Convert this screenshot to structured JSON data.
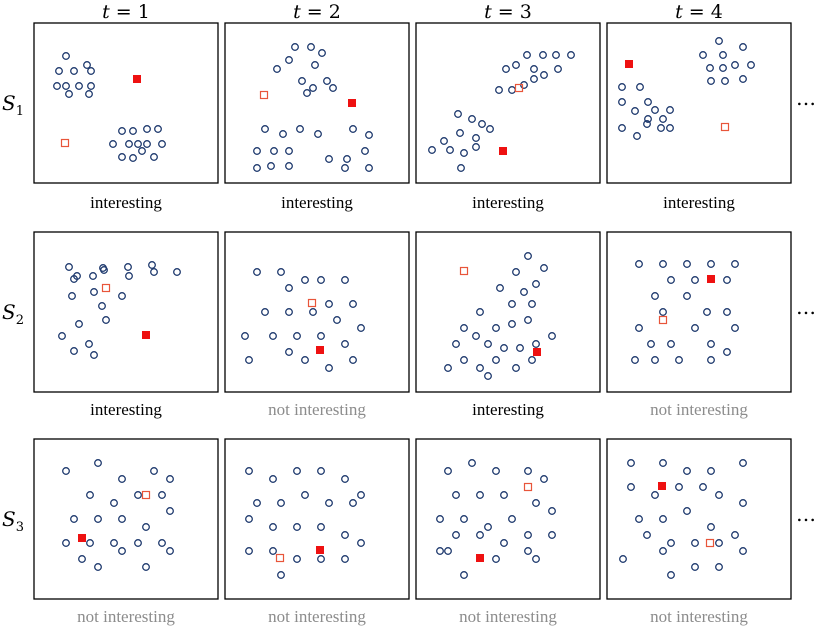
{
  "columns": [
    {
      "var": "t",
      "eq": " = ",
      "val": "1"
    },
    {
      "var": "t",
      "eq": " = ",
      "val": "2"
    },
    {
      "var": "t",
      "eq": " = ",
      "val": "3"
    },
    {
      "var": "t",
      "eq": " = ",
      "val": "4"
    }
  ],
  "rows": [
    {
      "label": "S",
      "sub": "1"
    },
    {
      "label": "S",
      "sub": "2"
    },
    {
      "label": "S",
      "sub": "3"
    }
  ],
  "ellipsis": "…",
  "colors": {
    "point": "#1f3a6e",
    "marker_filled": "#ee1111",
    "marker_open": "#e8553a",
    "caption_interesting": "#000000",
    "caption_not_interesting": "#8c8c8c"
  },
  "panels": [
    [
      {
        "caption": "interesting",
        "interesting": true
      },
      {
        "caption": "interesting",
        "interesting": true
      },
      {
        "caption": "interesting",
        "interesting": true
      },
      {
        "caption": "interesting",
        "interesting": true
      }
    ],
    [
      {
        "caption": "interesting",
        "interesting": true
      },
      {
        "caption": "not interesting",
        "interesting": false
      },
      {
        "caption": "interesting",
        "interesting": true
      },
      {
        "caption": "not interesting",
        "interesting": false
      }
    ],
    [
      {
        "caption": "not interesting",
        "interesting": false
      },
      {
        "caption": "not interesting",
        "interesting": false
      },
      {
        "caption": "not interesting",
        "interesting": false
      },
      {
        "caption": "not interesting",
        "interesting": false
      }
    ]
  ]
}
